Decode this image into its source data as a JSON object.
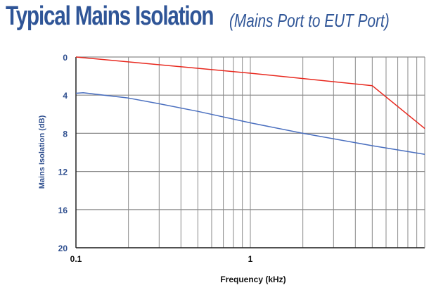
{
  "chart_data": {
    "type": "line",
    "title": "Typical Mains Isolation",
    "subtitle": "(Mains Port to EUT Port)",
    "xlabel": "Frequency (kHz)",
    "ylabel": "Mains Isolation (dB)",
    "x_scale": "log",
    "xlim": [
      0.1,
      10
    ],
    "ylim": [
      0,
      20
    ],
    "y_inverted": true,
    "x_tick_labels": [
      "0.1",
      "1"
    ],
    "y_ticks": [
      0,
      4,
      8,
      12,
      16,
      20
    ],
    "grid": true,
    "series": [
      {
        "color": "#e8281e",
        "x": [
          0.1,
          1,
          5,
          10
        ],
        "y": [
          0,
          1.7,
          3.0,
          7.5
        ]
      },
      {
        "color": "#4a6fbf",
        "x": [
          0.1,
          0.11,
          0.2,
          0.3,
          0.5,
          1,
          2,
          5,
          10
        ],
        "y": [
          3.8,
          3.75,
          4.3,
          4.9,
          5.7,
          6.9,
          8.0,
          9.3,
          10.2
        ]
      }
    ]
  }
}
